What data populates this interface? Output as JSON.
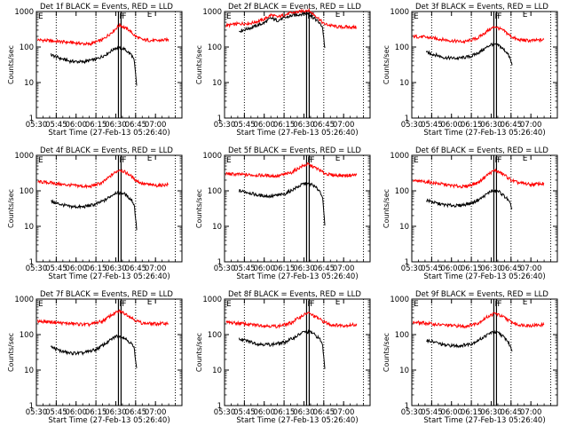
{
  "chart_data": [
    {
      "type": "line",
      "title": "Det 1f BLACK = Events, RED = LLD",
      "ylabel": "Counts/sec",
      "xlabel": "Start Time (27-Feb-13 05:26:40)",
      "xticks": [
        "05:30",
        "05:45",
        "06:00",
        "06:15",
        "06:30",
        "06:45",
        "07:00"
      ],
      "yticks": [
        "1",
        "10",
        "100",
        "1000"
      ],
      "ylim": [
        1,
        1000
      ],
      "yscale": "log",
      "markers": [
        "F",
        "F",
        "E"
      ],
      "series": [
        {
          "color": "#ff0000",
          "x": [
            "05:31",
            "05:40",
            "05:50",
            "06:00",
            "06:10",
            "06:20",
            "06:28",
            "06:33",
            "06:40",
            "06:45",
            "06:50",
            "07:00",
            "07:10"
          ],
          "values": [
            160,
            150,
            140,
            130,
            120,
            160,
            280,
            420,
            300,
            200,
            160,
            150,
            160
          ]
        },
        {
          "color": "#000000",
          "x": [
            "05:41",
            "05:48",
            "05:55",
            "06:05",
            "06:15",
            "06:22",
            "06:30",
            "06:36",
            "06:42",
            "06:44",
            "06:46"
          ],
          "values": [
            60,
            48,
            40,
            38,
            45,
            60,
            95,
            90,
            60,
            40,
            7
          ]
        }
      ]
    },
    {
      "type": "line",
      "title": "Det 2f BLACK = Events, RED = LLD",
      "ylabel": "Counts/sec",
      "xlabel": "Start Time (27-Feb-13 05:26:40)",
      "xticks": [
        "05:30",
        "05:45",
        "06:00",
        "06:15",
        "06:30",
        "06:45",
        "07:00"
      ],
      "yticks": [
        "1",
        "10",
        "100",
        "1000"
      ],
      "ylim": [
        1,
        1000
      ],
      "yscale": "log",
      "markers": [
        "F",
        "F",
        "E"
      ],
      "series": [
        {
          "color": "#ff0000",
          "x": [
            "05:31",
            "05:40",
            "05:50",
            "06:00",
            "06:05",
            "06:10",
            "06:20",
            "06:28",
            "06:33",
            "06:40",
            "06:45",
            "06:55",
            "07:10"
          ],
          "values": [
            400,
            450,
            470,
            600,
            800,
            700,
            900,
            1000,
            1100,
            700,
            450,
            370,
            360
          ]
        },
        {
          "color": "#000000",
          "x": [
            "05:41",
            "05:50",
            "06:00",
            "06:05",
            "06:10",
            "06:20",
            "06:28",
            "06:33",
            "06:40",
            "06:44",
            "06:46"
          ],
          "values": [
            280,
            350,
            480,
            650,
            560,
            750,
            850,
            900,
            550,
            380,
            80
          ]
        }
      ]
    },
    {
      "type": "line",
      "title": "Det 3f BLACK = Events, RED = LLD",
      "ylabel": "Counts/sec",
      "xlabel": "Start Time (27-Feb-13 05:26:40)",
      "xticks": [
        "05:30",
        "05:45",
        "06:00",
        "06:15",
        "06:30",
        "06:45",
        "07:00"
      ],
      "yticks": [
        "1",
        "10",
        "100",
        "1000"
      ],
      "ylim": [
        1,
        1000
      ],
      "yscale": "log",
      "markers": [
        "F",
        "F",
        "E"
      ],
      "series": [
        {
          "color": "#ff0000",
          "x": [
            "05:31",
            "05:40",
            "05:50",
            "06:00",
            "06:10",
            "06:20",
            "06:28",
            "06:33",
            "06:40",
            "06:45",
            "06:50",
            "07:00",
            "07:10"
          ],
          "values": [
            200,
            190,
            170,
            150,
            140,
            180,
            300,
            380,
            280,
            200,
            160,
            150,
            160
          ]
        },
        {
          "color": "#000000",
          "x": [
            "05:41",
            "05:48",
            "05:55",
            "06:05",
            "06:15",
            "06:22",
            "06:30",
            "06:36",
            "06:42",
            "06:44",
            "06:46"
          ],
          "values": [
            70,
            60,
            50,
            48,
            55,
            75,
            120,
            110,
            70,
            50,
            30
          ]
        }
      ]
    },
    {
      "type": "line",
      "title": "Det 4f BLACK = Events, RED = LLD",
      "ylabel": "Counts/sec",
      "xlabel": "Start Time (27-Feb-13 05:26:40)",
      "xticks": [
        "05:30",
        "05:45",
        "06:00",
        "06:15",
        "06:30",
        "06:45",
        "07:00"
      ],
      "yticks": [
        "1",
        "10",
        "100",
        "1000"
      ],
      "ylim": [
        1,
        1000
      ],
      "yscale": "log",
      "markers": [
        "F",
        "F",
        "E"
      ],
      "series": [
        {
          "color": "#ff0000",
          "x": [
            "05:31",
            "05:40",
            "05:50",
            "06:00",
            "06:10",
            "06:20",
            "06:28",
            "06:33",
            "06:40",
            "06:45",
            "06:50",
            "07:00",
            "07:10"
          ],
          "values": [
            180,
            170,
            150,
            140,
            130,
            170,
            300,
            400,
            290,
            200,
            160,
            140,
            150
          ]
        },
        {
          "color": "#000000",
          "x": [
            "05:41",
            "05:48",
            "05:55",
            "06:05",
            "06:15",
            "06:22",
            "06:30",
            "06:36",
            "06:42",
            "06:44",
            "06:46"
          ],
          "values": [
            50,
            42,
            36,
            35,
            42,
            55,
            90,
            85,
            55,
            40,
            7
          ]
        }
      ]
    },
    {
      "type": "line",
      "title": "Det 5f BLACK = Events, RED = LLD",
      "ylabel": "Counts/sec",
      "xlabel": "Start Time (27-Feb-13 05:26:40)",
      "xticks": [
        "05:30",
        "05:45",
        "06:00",
        "06:15",
        "06:30",
        "06:45",
        "07:00"
      ],
      "yticks": [
        "1",
        "10",
        "100",
        "1000"
      ],
      "ylim": [
        1,
        1000
      ],
      "yscale": "log",
      "markers": [
        "F",
        "F",
        "E"
      ],
      "series": [
        {
          "color": "#ff0000",
          "x": [
            "05:31",
            "05:40",
            "05:50",
            "06:00",
            "06:10",
            "06:20",
            "06:28",
            "06:33",
            "06:40",
            "06:45",
            "06:50",
            "07:00",
            "07:10"
          ],
          "values": [
            300,
            290,
            280,
            270,
            260,
            320,
            480,
            560,
            420,
            320,
            280,
            270,
            280
          ]
        },
        {
          "color": "#000000",
          "x": [
            "05:41",
            "05:48",
            "05:55",
            "06:05",
            "06:15",
            "06:22",
            "06:30",
            "06:36",
            "06:42",
            "06:44",
            "06:46"
          ],
          "values": [
            100,
            90,
            75,
            70,
            80,
            110,
            160,
            150,
            100,
            70,
            9
          ]
        }
      ]
    },
    {
      "type": "line",
      "title": "Det 6f BLACK = Events, RED = LLD",
      "ylabel": "Counts/sec",
      "xlabel": "Start Time (27-Feb-13 05:26:40)",
      "xticks": [
        "05:30",
        "05:45",
        "06:00",
        "06:15",
        "06:30",
        "06:45",
        "07:00"
      ],
      "yticks": [
        "1",
        "10",
        "100",
        "1000"
      ],
      "ylim": [
        1,
        1000
      ],
      "yscale": "log",
      "markers": [
        "F",
        "F",
        "E"
      ],
      "series": [
        {
          "color": "#ff0000",
          "x": [
            "05:31",
            "05:40",
            "05:50",
            "06:00",
            "06:10",
            "06:20",
            "06:28",
            "06:33",
            "06:40",
            "06:45",
            "06:50",
            "07:00",
            "07:10"
          ],
          "values": [
            190,
            180,
            160,
            140,
            130,
            170,
            300,
            380,
            280,
            200,
            170,
            150,
            160
          ]
        },
        {
          "color": "#000000",
          "x": [
            "05:41",
            "05:48",
            "05:55",
            "06:05",
            "06:15",
            "06:22",
            "06:30",
            "06:36",
            "06:42",
            "06:44",
            "06:46"
          ],
          "values": [
            55,
            45,
            40,
            38,
            45,
            60,
            100,
            95,
            60,
            45,
            30
          ]
        }
      ]
    },
    {
      "type": "line",
      "title": "Det 7f BLACK = Events, RED = LLD",
      "ylabel": "Counts/sec",
      "xlabel": "Start Time (27-Feb-13 05:26:40)",
      "xticks": [
        "05:30",
        "05:45",
        "06:00",
        "06:15",
        "06:30",
        "06:45",
        "07:00"
      ],
      "yticks": [
        "1",
        "10",
        "100",
        "1000"
      ],
      "ylim": [
        1,
        1000
      ],
      "yscale": "log",
      "markers": [
        "F",
        "F",
        "E"
      ],
      "series": [
        {
          "color": "#ff0000",
          "x": [
            "05:31",
            "05:40",
            "05:50",
            "06:00",
            "06:10",
            "06:20",
            "06:28",
            "06:33",
            "06:40",
            "06:45",
            "06:50",
            "07:00",
            "07:10"
          ],
          "values": [
            240,
            230,
            210,
            200,
            190,
            240,
            380,
            460,
            340,
            250,
            210,
            200,
            210
          ]
        },
        {
          "color": "#000000",
          "x": [
            "05:41",
            "05:48",
            "05:55",
            "06:05",
            "06:15",
            "06:22",
            "06:30",
            "06:36",
            "06:42",
            "06:44",
            "06:46"
          ],
          "values": [
            45,
            35,
            30,
            30,
            38,
            55,
            90,
            85,
            55,
            40,
            10
          ]
        }
      ]
    },
    {
      "type": "line",
      "title": "Det 8f BLACK = Events, RED = LLD",
      "ylabel": "Counts/sec",
      "xlabel": "Start Time (27-Feb-13 05:26:40)",
      "xticks": [
        "05:30",
        "05:45",
        "06:00",
        "06:15",
        "06:30",
        "06:45",
        "07:00"
      ],
      "yticks": [
        "1",
        "10",
        "100",
        "1000"
      ],
      "ylim": [
        1,
        1000
      ],
      "yscale": "log",
      "markers": [
        "F",
        "F",
        "E"
      ],
      "series": [
        {
          "color": "#ff0000",
          "x": [
            "05:31",
            "05:40",
            "05:50",
            "06:00",
            "06:10",
            "06:20",
            "06:28",
            "06:33",
            "06:40",
            "06:45",
            "06:50",
            "07:00",
            "07:10"
          ],
          "values": [
            220,
            210,
            190,
            180,
            170,
            210,
            330,
            410,
            300,
            230,
            190,
            180,
            190
          ]
        },
        {
          "color": "#000000",
          "x": [
            "05:41",
            "05:48",
            "05:55",
            "06:05",
            "06:15",
            "06:22",
            "06:30",
            "06:36",
            "06:42",
            "06:44",
            "06:46"
          ],
          "values": [
            75,
            65,
            55,
            52,
            60,
            80,
            120,
            115,
            75,
            55,
            10
          ]
        }
      ]
    },
    {
      "type": "line",
      "title": "Det 9f BLACK = Events, RED = LLD",
      "ylabel": "Counts/sec",
      "xlabel": "Start Time (27-Feb-13 05:26:40)",
      "xticks": [
        "05:30",
        "05:45",
        "06:00",
        "06:15",
        "06:30",
        "06:45",
        "07:00"
      ],
      "yticks": [
        "1",
        "10",
        "100",
        "1000"
      ],
      "ylim": [
        1,
        1000
      ],
      "yscale": "log",
      "markers": [
        "F",
        "F",
        "E"
      ],
      "series": [
        {
          "color": "#ff0000",
          "x": [
            "05:31",
            "05:40",
            "05:50",
            "06:00",
            "06:10",
            "06:20",
            "06:28",
            "06:33",
            "06:40",
            "06:45",
            "06:50",
            "07:00",
            "07:10"
          ],
          "values": [
            220,
            210,
            190,
            180,
            170,
            210,
            330,
            400,
            300,
            230,
            190,
            180,
            190
          ]
        },
        {
          "color": "#000000",
          "x": [
            "05:41",
            "05:48",
            "05:55",
            "06:05",
            "06:15",
            "06:22",
            "06:30",
            "06:36",
            "06:42",
            "06:44",
            "06:46"
          ],
          "values": [
            70,
            60,
            50,
            48,
            55,
            75,
            115,
            110,
            70,
            50,
            35
          ]
        }
      ]
    }
  ]
}
